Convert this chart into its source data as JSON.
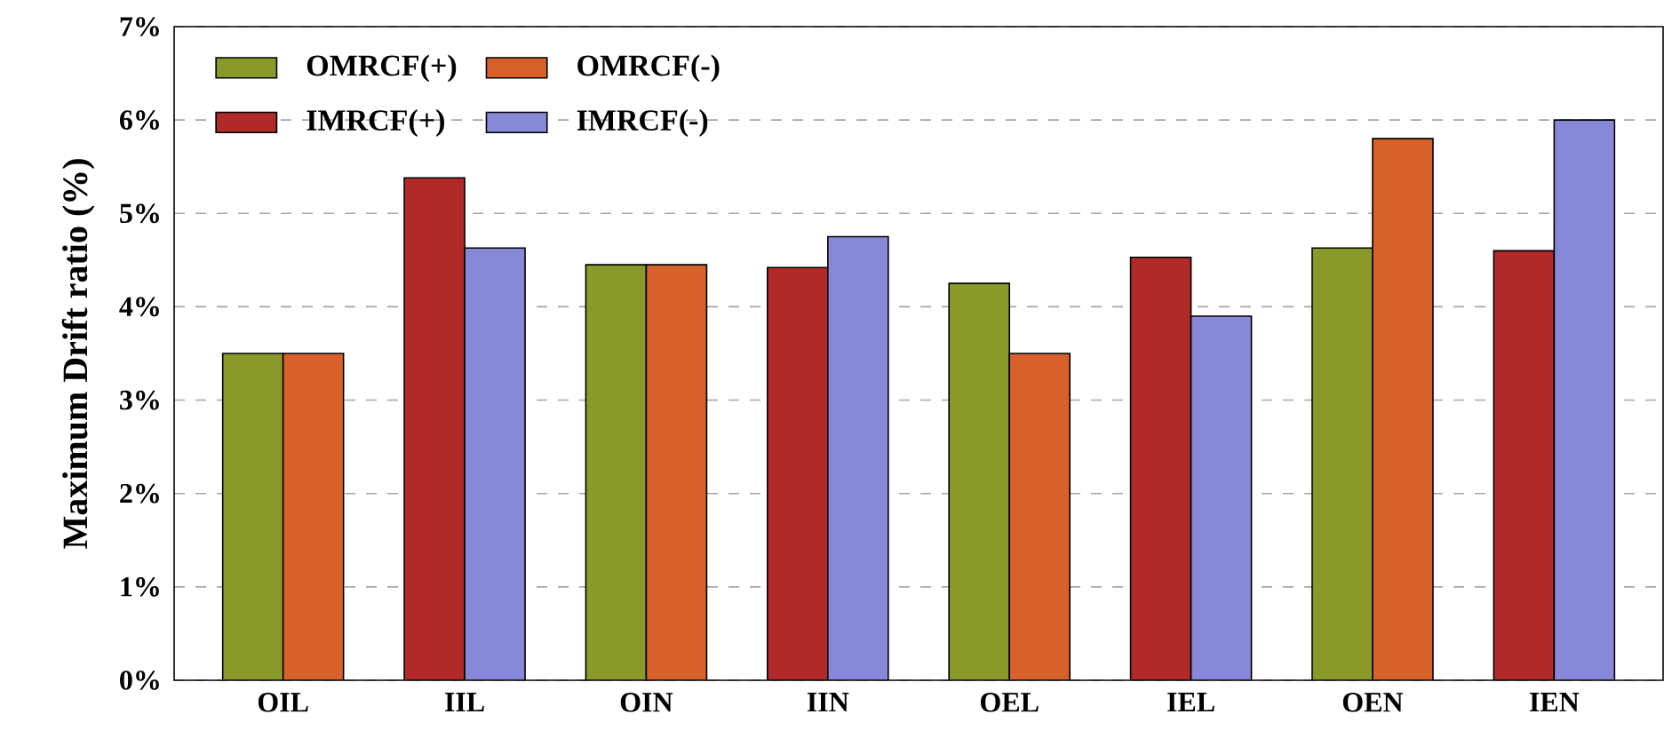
{
  "chart_data": {
    "type": "bar",
    "ylabel": "Maximum Drift ratio (%)",
    "categories": [
      "OIL",
      "IIL",
      "OIN",
      "IIN",
      "OEL",
      "IEL",
      "OEN",
      "IEN"
    ],
    "series": [
      {
        "name": "OMRCF(+)",
        "color": "#8a9a2a",
        "values": [
          3.5,
          null,
          4.45,
          null,
          4.25,
          null,
          4.63,
          null
        ]
      },
      {
        "name": "OMRCF(-)",
        "color": "#d8602a",
        "values": [
          3.5,
          null,
          4.45,
          null,
          3.5,
          null,
          5.8,
          null
        ]
      },
      {
        "name": "IMRCF(+)",
        "color": "#b02a2a",
        "values": [
          null,
          5.38,
          null,
          4.42,
          null,
          4.53,
          null,
          4.6
        ]
      },
      {
        "name": "IMRCF(-)",
        "color": "#8888d8",
        "values": [
          null,
          4.63,
          null,
          4.75,
          null,
          3.9,
          null,
          6.0
        ]
      }
    ],
    "ylim": [
      0,
      7
    ],
    "yticks": [
      {
        "value": 0,
        "label": "0%"
      },
      {
        "value": 1,
        "label": "1%"
      },
      {
        "value": 2,
        "label": "2%"
      },
      {
        "value": 3,
        "label": "3%"
      },
      {
        "value": 4,
        "label": "4%"
      },
      {
        "value": 5,
        "label": "5%"
      },
      {
        "value": 6,
        "label": "6%"
      },
      {
        "value": 7,
        "label": "7%"
      }
    ],
    "grid": "y",
    "legend": "top left"
  }
}
